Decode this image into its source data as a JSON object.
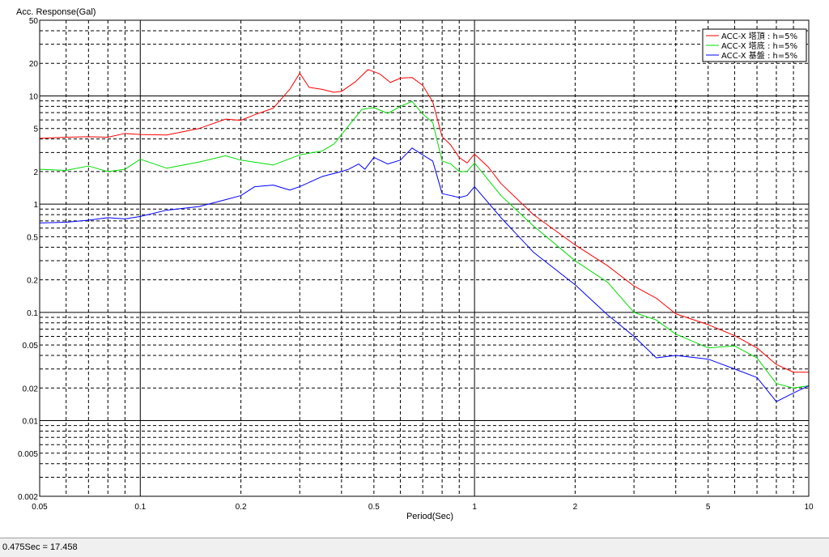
{
  "chart_data": {
    "type": "line",
    "ylabel": "Acc. Response(Gal)",
    "xlabel": "Period(Sec)",
    "x_scale": "log",
    "y_scale": "log",
    "xlim": [
      0.05,
      10
    ],
    "ylim": [
      0.002,
      50
    ],
    "x_ticks": [
      {
        "value": 0.05,
        "label": "0.05"
      },
      {
        "value": 0.1,
        "label": "0.1"
      },
      {
        "value": 0.2,
        "label": "0.2"
      },
      {
        "value": 0.5,
        "label": "0.5"
      },
      {
        "value": 1,
        "label": "1"
      },
      {
        "value": 2,
        "label": "2"
      },
      {
        "value": 5,
        "label": "5"
      },
      {
        "value": 10,
        "label": "10"
      }
    ],
    "y_ticks": [
      {
        "value": 50,
        "label": "50"
      },
      {
        "value": 20,
        "label": "20"
      },
      {
        "value": 10,
        "label": "10"
      },
      {
        "value": 5,
        "label": "5"
      },
      {
        "value": 2,
        "label": "2"
      },
      {
        "value": 1,
        "label": "1"
      },
      {
        "value": 0.5,
        "label": "0.5"
      },
      {
        "value": 0.2,
        "label": "0.2"
      },
      {
        "value": 0.1,
        "label": "0.1"
      },
      {
        "value": 0.05,
        "label": "0.05"
      },
      {
        "value": 0.02,
        "label": "0.02"
      },
      {
        "value": 0.01,
        "label": "0.01"
      },
      {
        "value": 0.005,
        "label": "0.005"
      },
      {
        "value": 0.002,
        "label": "0.002"
      }
    ],
    "grid": true,
    "legend_position": "top-right",
    "series": [
      {
        "name": "ACC-X 塔頂 : h=5%",
        "color": "#ff0000",
        "points": [
          [
            0.05,
            4.05
          ],
          [
            0.06,
            4.15
          ],
          [
            0.07,
            4.2
          ],
          [
            0.08,
            4.15
          ],
          [
            0.09,
            4.5
          ],
          [
            0.1,
            4.4
          ],
          [
            0.12,
            4.35
          ],
          [
            0.15,
            5.0
          ],
          [
            0.18,
            6.1
          ],
          [
            0.2,
            5.95
          ],
          [
            0.22,
            6.7
          ],
          [
            0.25,
            7.7
          ],
          [
            0.28,
            11.5
          ],
          [
            0.3,
            16.2
          ],
          [
            0.32,
            12.0
          ],
          [
            0.35,
            11.5
          ],
          [
            0.38,
            10.8
          ],
          [
            0.4,
            11.0
          ],
          [
            0.44,
            13.5
          ],
          [
            0.48,
            17.5
          ],
          [
            0.52,
            16.0
          ],
          [
            0.56,
            13.3
          ],
          [
            0.6,
            14.6
          ],
          [
            0.65,
            14.8
          ],
          [
            0.7,
            12.5
          ],
          [
            0.75,
            8.8
          ],
          [
            0.8,
            4.2
          ],
          [
            0.85,
            3.5
          ],
          [
            0.9,
            2.7
          ],
          [
            0.95,
            2.4
          ],
          [
            1.0,
            2.9
          ],
          [
            1.1,
            2.2
          ],
          [
            1.2,
            1.55
          ],
          [
            1.5,
            0.8
          ],
          [
            2.0,
            0.42
          ],
          [
            2.5,
            0.27
          ],
          [
            3.0,
            0.175
          ],
          [
            3.5,
            0.135
          ],
          [
            4.0,
            0.097
          ],
          [
            5.0,
            0.077
          ],
          [
            6.0,
            0.061
          ],
          [
            7.0,
            0.047
          ],
          [
            8.0,
            0.033
          ],
          [
            9.0,
            0.028
          ],
          [
            10.0,
            0.028
          ]
        ]
      },
      {
        "name": "ACC-X 塔底 : h=5%",
        "color": "#00dd00",
        "points": [
          [
            0.05,
            2.1
          ],
          [
            0.06,
            2.05
          ],
          [
            0.07,
            2.25
          ],
          [
            0.08,
            2.0
          ],
          [
            0.09,
            2.1
          ],
          [
            0.1,
            2.6
          ],
          [
            0.12,
            2.15
          ],
          [
            0.15,
            2.45
          ],
          [
            0.18,
            2.8
          ],
          [
            0.2,
            2.55
          ],
          [
            0.25,
            2.3
          ],
          [
            0.3,
            2.85
          ],
          [
            0.35,
            3.1
          ],
          [
            0.38,
            3.6
          ],
          [
            0.42,
            5.3
          ],
          [
            0.46,
            7.5
          ],
          [
            0.5,
            7.8
          ],
          [
            0.55,
            6.9
          ],
          [
            0.6,
            8.0
          ],
          [
            0.65,
            8.9
          ],
          [
            0.7,
            6.8
          ],
          [
            0.75,
            5.7
          ],
          [
            0.8,
            2.5
          ],
          [
            0.85,
            2.35
          ],
          [
            0.9,
            2.0
          ],
          [
            0.95,
            2.0
          ],
          [
            1.0,
            2.4
          ],
          [
            1.2,
            1.2
          ],
          [
            1.5,
            0.63
          ],
          [
            2.0,
            0.3
          ],
          [
            2.5,
            0.19
          ],
          [
            3.0,
            0.1
          ],
          [
            3.5,
            0.085
          ],
          [
            4.0,
            0.063
          ],
          [
            5.0,
            0.047
          ],
          [
            6.0,
            0.049
          ],
          [
            7.0,
            0.038
          ],
          [
            8.0,
            0.022
          ],
          [
            9.0,
            0.02
          ],
          [
            10.0,
            0.021
          ]
        ]
      },
      {
        "name": "ACC-X 基盤 : h=5%",
        "color": "#0000ff",
        "points": [
          [
            0.05,
            0.67
          ],
          [
            0.06,
            0.68
          ],
          [
            0.07,
            0.71
          ],
          [
            0.08,
            0.75
          ],
          [
            0.09,
            0.73
          ],
          [
            0.1,
            0.77
          ],
          [
            0.12,
            0.88
          ],
          [
            0.15,
            0.95
          ],
          [
            0.18,
            1.1
          ],
          [
            0.2,
            1.2
          ],
          [
            0.22,
            1.45
          ],
          [
            0.25,
            1.5
          ],
          [
            0.28,
            1.35
          ],
          [
            0.3,
            1.45
          ],
          [
            0.35,
            1.8
          ],
          [
            0.4,
            2.0
          ],
          [
            0.42,
            2.1
          ],
          [
            0.45,
            2.35
          ],
          [
            0.47,
            2.1
          ],
          [
            0.5,
            2.7
          ],
          [
            0.55,
            2.35
          ],
          [
            0.6,
            2.55
          ],
          [
            0.65,
            3.3
          ],
          [
            0.7,
            2.85
          ],
          [
            0.75,
            2.5
          ],
          [
            0.8,
            1.25
          ],
          [
            0.85,
            1.2
          ],
          [
            0.9,
            1.15
          ],
          [
            0.95,
            1.2
          ],
          [
            1.0,
            1.45
          ],
          [
            1.2,
            0.75
          ],
          [
            1.5,
            0.36
          ],
          [
            2.0,
            0.18
          ],
          [
            2.5,
            0.095
          ],
          [
            3.0,
            0.06
          ],
          [
            3.5,
            0.038
          ],
          [
            4.0,
            0.04
          ],
          [
            5.0,
            0.037
          ],
          [
            6.0,
            0.03
          ],
          [
            7.0,
            0.025
          ],
          [
            8.0,
            0.015
          ],
          [
            9.0,
            0.018
          ],
          [
            10.0,
            0.021
          ]
        ]
      }
    ]
  },
  "status": {
    "text": "0.475Sec = 17.458"
  }
}
